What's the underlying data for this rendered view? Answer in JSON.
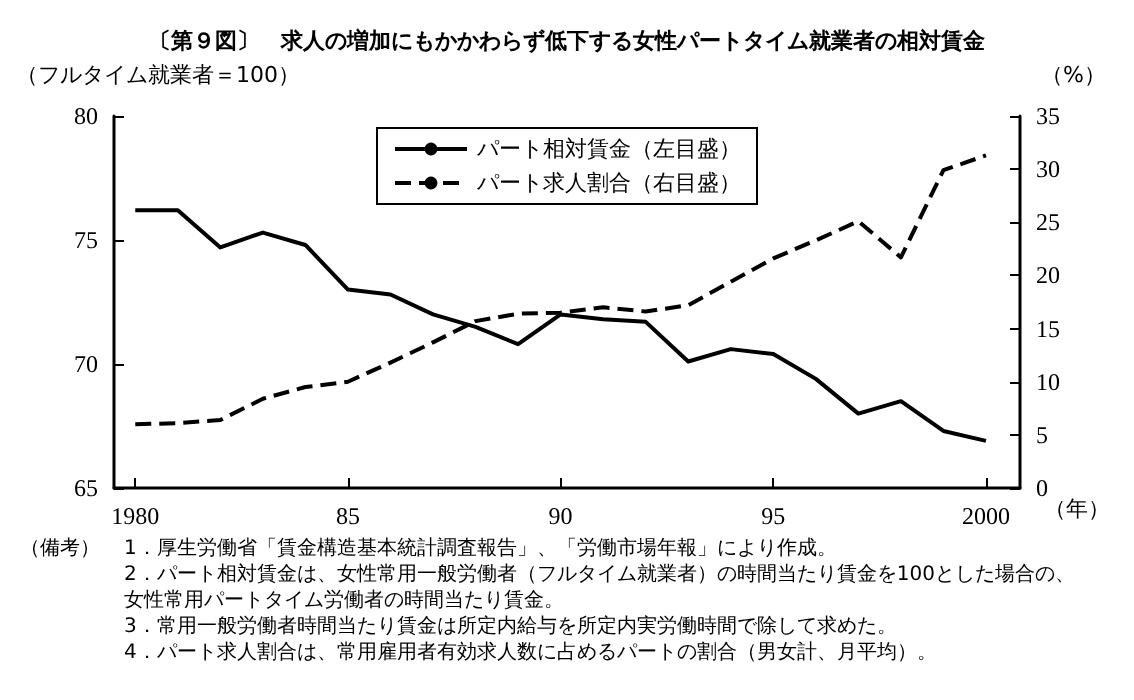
{
  "chart_data": {
    "type": "line",
    "title": "〔第９図〕　求人の増加にもかかわらず低下する女性パートタイム就業者の相対賃金",
    "ylabel": "（フルタイム就業者＝100）",
    "y2label": "（%）",
    "xlabel": "（年）",
    "x": [
      1980,
      1981,
      1982,
      1983,
      1984,
      1985,
      1986,
      1987,
      1988,
      1989,
      1990,
      1991,
      1992,
      1993,
      1994,
      1995,
      1996,
      1997,
      1998,
      1999,
      2000
    ],
    "series": [
      {
        "name": "パート相対賃金（左目盛）",
        "color": "#000000",
        "line_style": "solid",
        "values": [
          76.2,
          76.2,
          74.7,
          75.3,
          74.8,
          73.0,
          72.8,
          72.0,
          71.5,
          70.8,
          72.0,
          71.8,
          71.7,
          70.1,
          70.6,
          70.4,
          69.4,
          68.0,
          68.5,
          67.3,
          66.9
        ]
      },
      {
        "name": "パート求人割合（右目盛）",
        "color": "#000000",
        "line_style": "dashed",
        "axis": "y2",
        "values": [
          6.0,
          6.1,
          6.4,
          8.4,
          9.5,
          10.0,
          11.8,
          13.7,
          15.7,
          16.4,
          16.5,
          17.0,
          16.6,
          17.2,
          19.4,
          21.6,
          23.3,
          25.1,
          21.7,
          29.9,
          31.3
        ]
      }
    ],
    "xlim": [
      1979.5,
      2000.8
    ],
    "xticks": [
      1980,
      {
        "value": 1985,
        "label": "85"
      },
      {
        "value": 1990,
        "label": "90"
      },
      {
        "value": 1995,
        "label": "95"
      },
      2000
    ],
    "ylim": [
      65,
      80
    ],
    "yticks": [
      65,
      70,
      75,
      80
    ],
    "y2lim": [
      0,
      35
    ],
    "y2ticks": [
      0,
      5,
      10,
      15,
      20,
      25,
      30,
      35
    ],
    "grid": false,
    "legend": "top",
    "marker": "none",
    "annotations": [
      "（備考）",
      "1．厚生労働省「賃金構造基本統計調査報告」、「労働市場年報」により作成。",
      "2．パート相対賃金は、女性常用一般労働者（フルタイム就業者）の時間当たり賃金を100とした場合の、女性常用パートタイム労働者の時間当たり賃金。",
      "3．常用一般労働者時間当たり賃金は所定内給与を所定内実労働時間で除して求めた。",
      "4．パート求人割合は、常用雇用者有効求人数に占めるパートの割合（男女計、月平均）。"
    ]
  }
}
